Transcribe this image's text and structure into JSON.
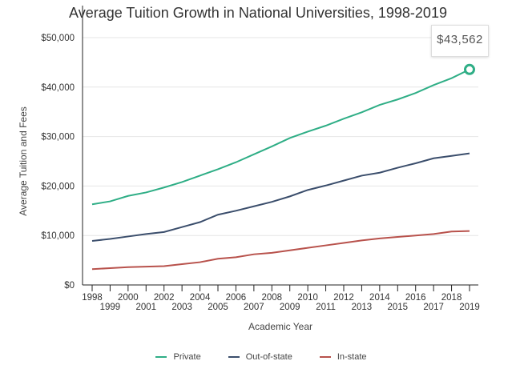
{
  "chart_data": {
    "type": "line",
    "title": "Average Tuition Growth in National Universities, 1998-2019",
    "xlabel": "Academic Year",
    "ylabel": "Average Tuition and Fees",
    "ylim": [
      0,
      50000
    ],
    "yticks": [
      "$0",
      "$10,000",
      "$20,000",
      "$30,000",
      "$40,000",
      "$50,000"
    ],
    "x": [
      "1998",
      "1999",
      "2000",
      "2001",
      "2002",
      "2003",
      "2004",
      "2005",
      "2006",
      "2007",
      "2008",
      "2009",
      "2010",
      "2011",
      "2012",
      "2013",
      "2014",
      "2015",
      "2016",
      "2017",
      "2018",
      "2019"
    ],
    "series": [
      {
        "name": "Private",
        "color": "#2fae86",
        "values": [
          16300,
          16900,
          18000,
          18700,
          19700,
          20800,
          22100,
          23400,
          24800,
          26400,
          28000,
          29700,
          31000,
          32200,
          33600,
          34900,
          36400,
          37500,
          38800,
          40400,
          41800,
          43562
        ]
      },
      {
        "name": "Out-of-state",
        "color": "#3b4e6c",
        "values": [
          8900,
          9300,
          9800,
          10300,
          10700,
          11700,
          12700,
          14200,
          15000,
          15900,
          16800,
          17900,
          19200,
          20100,
          21100,
          22100,
          22700,
          23700,
          24600,
          25600,
          26100,
          26600
        ]
      },
      {
        "name": "In-state",
        "color": "#b8524c",
        "values": [
          3200,
          3400,
          3600,
          3700,
          3800,
          4200,
          4600,
          5300,
          5600,
          6200,
          6500,
          7000,
          7500,
          8000,
          8500,
          9000,
          9400,
          9700,
          10000,
          10300,
          10800,
          10900
        ]
      }
    ],
    "legend_position": "bottom",
    "grid": true,
    "tooltip": "$43,562"
  }
}
